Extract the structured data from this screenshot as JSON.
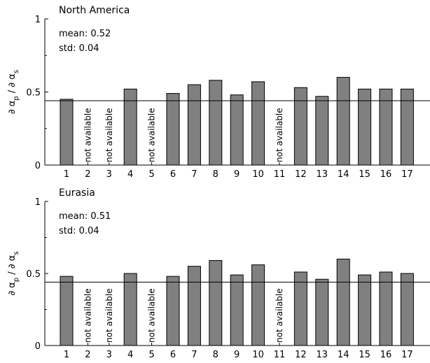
{
  "chart_data": [
    {
      "type": "bar",
      "title": "North America",
      "annotations": [
        "mean: 0.52",
        "std: 0.04"
      ],
      "ylabel": {
        "base": "∂ α",
        "num_sub": "p",
        "sep": " / ∂ α",
        "den_sub": "s"
      },
      "categories": [
        "1",
        "2",
        "3",
        "4",
        "5",
        "6",
        "7",
        "8",
        "9",
        "10",
        "11",
        "12",
        "13",
        "14",
        "15",
        "16",
        "17"
      ],
      "values": [
        0.45,
        null,
        null,
        0.52,
        null,
        0.49,
        0.55,
        0.58,
        0.48,
        0.57,
        null,
        0.53,
        0.47,
        0.6,
        0.52,
        0.52,
        0.52
      ],
      "missing_label": "not available",
      "reference_line": 0.44,
      "ylim": [
        0,
        1
      ],
      "yticks": [
        0,
        0.5,
        1
      ],
      "yticklabels": [
        "0",
        "0.5",
        "1"
      ],
      "grid": false,
      "colors": {
        "bar": "#808080",
        "edge": "#000000"
      }
    },
    {
      "type": "bar",
      "title": "Eurasia",
      "annotations": [
        "mean: 0.51",
        "std: 0.04"
      ],
      "ylabel": {
        "base": "∂ α",
        "num_sub": "p",
        "sep": " / ∂ α",
        "den_sub": "s"
      },
      "categories": [
        "1",
        "2",
        "3",
        "4",
        "5",
        "6",
        "7",
        "8",
        "9",
        "10",
        "11",
        "12",
        "13",
        "14",
        "15",
        "16",
        "17"
      ],
      "values": [
        0.48,
        null,
        null,
        0.5,
        null,
        0.48,
        0.55,
        0.59,
        0.49,
        0.56,
        null,
        0.51,
        0.46,
        0.6,
        0.49,
        0.51,
        0.5
      ],
      "missing_label": "not available",
      "reference_line": 0.44,
      "ylim": [
        0,
        1
      ],
      "yticks": [
        0,
        0.5,
        1
      ],
      "yticklabels": [
        "0",
        "0.5",
        "1"
      ],
      "grid": false,
      "colors": {
        "bar": "#808080",
        "edge": "#000000"
      }
    }
  ]
}
